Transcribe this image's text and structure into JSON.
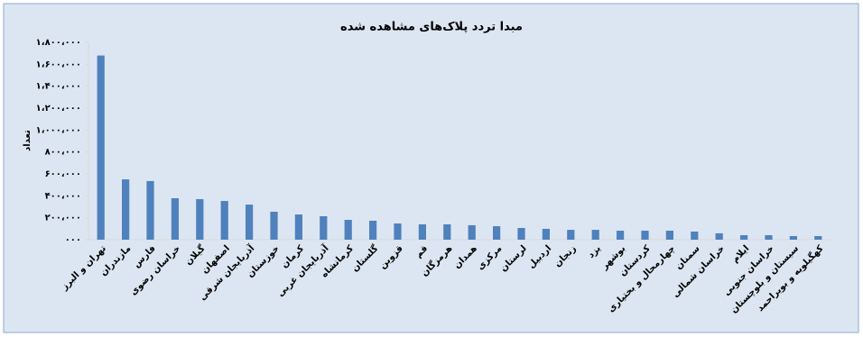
{
  "chart_data": {
    "type": "bar",
    "title": "مبدا تردد پلاک‌های مشاهده شده",
    "y_label": "تعداد",
    "categories": [
      "تهران و البرز",
      "مازندران",
      "فارس",
      "خراسان رضوی",
      "گیلان",
      "اصفهان",
      "آذربایجان شرقی",
      "خوزستان",
      "کرمان",
      "آذربایجان غربی",
      "کرمانشاه",
      "گلستان",
      "قزوین",
      "قم",
      "هرمزگان",
      "همدان",
      "مرکزی",
      "لرستان",
      "اردبیل",
      "زنجان",
      "یزد",
      "بوشهر",
      "کردستان",
      "چهارمحال و بختیاری",
      "سمنان",
      "خراسان شمالی",
      "ایلام",
      "خراسان جنوبی",
      "سیستان و بلوچستان",
      "کهگیلویه و بویراحمد"
    ],
    "values": [
      1680000,
      550000,
      535000,
      378000,
      370000,
      353000,
      320000,
      255000,
      230000,
      214000,
      181000,
      173000,
      148000,
      140000,
      140000,
      132000,
      123000,
      107000,
      99000,
      90000,
      90000,
      82000,
      82000,
      82000,
      74000,
      58000,
      41000,
      41000,
      33000,
      33000
    ],
    "color": "#4f81bd",
    "ylim": [
      0,
      1800000
    ],
    "yticks": [
      {
        "value": 0,
        "label": "۰۰۰"
      },
      {
        "value": 200000,
        "label": "۲۰۰،۰۰۰"
      },
      {
        "value": 400000,
        "label": "۴۰۰،۰۰۰"
      },
      {
        "value": 600000,
        "label": "۶۰۰،۰۰۰"
      },
      {
        "value": 800000,
        "label": "۸۰۰،۰۰۰"
      },
      {
        "value": 1000000,
        "label": "۱،۰۰۰،۰۰۰"
      },
      {
        "value": 1200000,
        "label": "۱،۲۰۰،۰۰۰"
      },
      {
        "value": 1400000,
        "label": "۱،۴۰۰،۰۰۰"
      },
      {
        "value": 1600000,
        "label": "۱،۶۰۰،۰۰۰"
      },
      {
        "value": 1800000,
        "label": "۱،۸۰۰،۰۰۰"
      }
    ],
    "grid": false
  }
}
